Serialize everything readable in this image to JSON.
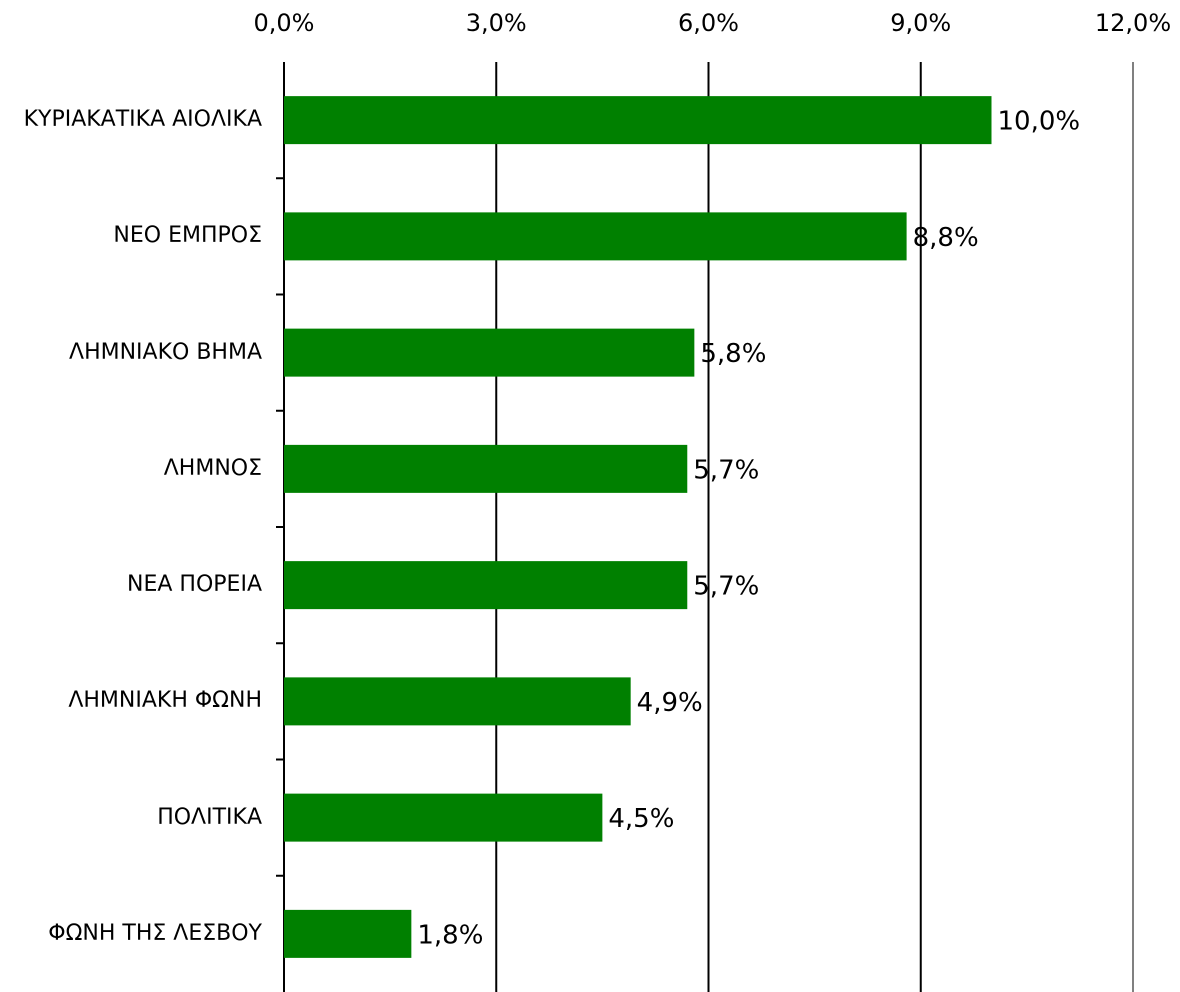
{
  "chart_data": {
    "type": "bar",
    "orientation": "horizontal",
    "categories": [
      "ΚΥΡΙΑΚΑΤΙΚΑ ΑΙΟΛΙΚΑ",
      "ΝΕΟ ΕΜΠΡΟΣ",
      "ΛΗΜΝΙΑΚΟ ΒΗΜΑ",
      "ΛΗΜΝΟΣ",
      "ΝΕΑ ΠΟΡΕΙΑ",
      "ΛΗΜΝΙΑΚΗ ΦΩΝΗ",
      "ΠΟΛΙΤΙΚΑ",
      "ΦΩΝΗ ΤΗΣ ΛΕΣΒΟΥ"
    ],
    "values": [
      10.0,
      8.8,
      5.8,
      5.7,
      5.7,
      4.9,
      4.5,
      1.8
    ],
    "value_labels": [
      "10,0%",
      "8,8%",
      "5,8%",
      "5,7%",
      "5,7%",
      "4,9%",
      "4,5%",
      "1,8%"
    ],
    "color": "#008000",
    "xlim": [
      0,
      12
    ],
    "xticks": [
      {
        "value": 0,
        "label": "0,0%"
      },
      {
        "value": 3,
        "label": "3,0%"
      },
      {
        "value": 6,
        "label": "6,0%"
      },
      {
        "value": 9,
        "label": "9,0%"
      },
      {
        "value": 12,
        "label": "12,0%"
      }
    ],
    "grid": true
  }
}
